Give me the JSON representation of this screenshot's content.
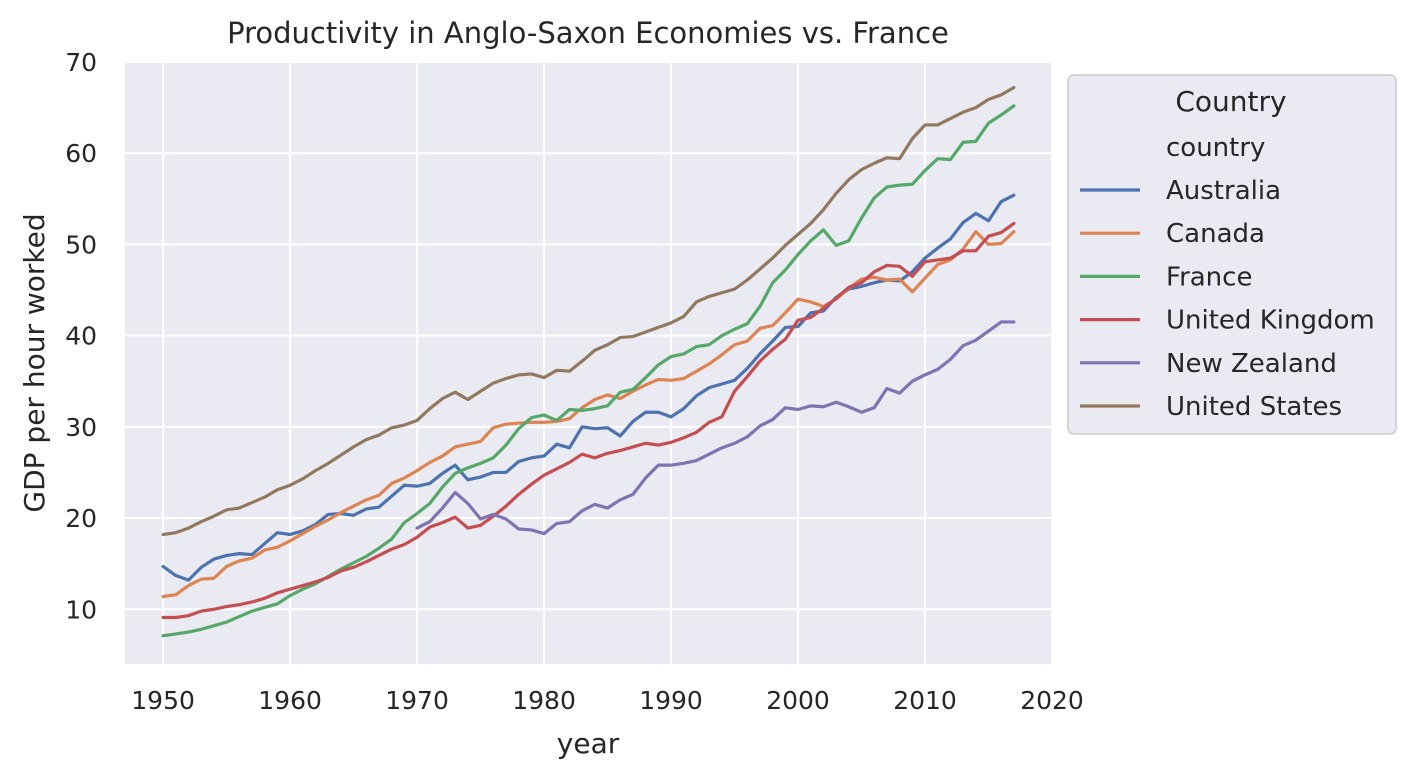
{
  "chart_data": {
    "type": "line",
    "title": "Productivity in Anglo-Saxon Economies vs. France",
    "xlabel": "year",
    "ylabel": "GDP per hour worked",
    "xlim": [
      1947,
      2020
    ],
    "ylim": [
      4,
      70
    ],
    "xticks": [
      1950,
      1960,
      1970,
      1980,
      1990,
      2000,
      2010,
      2020
    ],
    "yticks": [
      10,
      20,
      30,
      40,
      50,
      60,
      70
    ],
    "grid": true,
    "background": "#eaeaf2",
    "legend": {
      "title": "Country",
      "subtitle": "country",
      "placement": "outside-right-top"
    },
    "series": [
      {
        "name": "Australia",
        "color": "#4c72b0",
        "x_start": 1950,
        "values": [
          14.7,
          13.7,
          13.2,
          14.6,
          15.5,
          15.9,
          16.1,
          16.0,
          17.2,
          18.4,
          18.2,
          18.6,
          19.3,
          20.4,
          20.5,
          20.3,
          21.0,
          21.2,
          22.4,
          23.6,
          23.5,
          23.8,
          24.9,
          25.8,
          24.2,
          24.5,
          25.0,
          25.0,
          26.2,
          26.6,
          26.8,
          28.1,
          27.7,
          30.0,
          29.8,
          29.9,
          29.0,
          30.6,
          31.6,
          31.6,
          31.1,
          32.0,
          33.4,
          34.3,
          34.7,
          35.1,
          36.4,
          38.0,
          39.4,
          40.9,
          41.0,
          42.5,
          42.7,
          44.2,
          45.1,
          45.4,
          45.8,
          46.1,
          46.0,
          47.0,
          48.5,
          49.6,
          50.6,
          52.4,
          53.4,
          52.6,
          54.7,
          55.4
        ]
      },
      {
        "name": "Canada",
        "color": "#dd8452",
        "x_start": 1950,
        "values": [
          11.4,
          11.6,
          12.6,
          13.3,
          13.4,
          14.7,
          15.3,
          15.6,
          16.5,
          16.8,
          17.5,
          18.3,
          19.1,
          19.8,
          20.6,
          21.3,
          22.0,
          22.5,
          23.8,
          24.4,
          25.2,
          26.1,
          26.8,
          27.8,
          28.1,
          28.4,
          29.9,
          30.3,
          30.4,
          30.5,
          30.5,
          30.6,
          30.9,
          32.1,
          33.0,
          33.5,
          33.1,
          33.9,
          34.6,
          35.2,
          35.1,
          35.3,
          36.1,
          36.9,
          37.9,
          39.0,
          39.4,
          40.8,
          41.1,
          42.5,
          44.0,
          43.7,
          43.2,
          44.0,
          45.2,
          46.2,
          46.4,
          46.1,
          46.2,
          44.8,
          46.3,
          47.8,
          48.3,
          49.5,
          51.4,
          50.0,
          50.1,
          51.4
        ]
      },
      {
        "name": "France",
        "color": "#55a868",
        "x_start": 1950,
        "values": [
          7.1,
          7.3,
          7.5,
          7.8,
          8.2,
          8.6,
          9.2,
          9.8,
          10.2,
          10.6,
          11.5,
          12.2,
          12.8,
          13.6,
          14.4,
          15.1,
          15.8,
          16.7,
          17.7,
          19.5,
          20.5,
          21.6,
          23.4,
          24.9,
          25.5,
          26.0,
          26.6,
          28.0,
          29.8,
          31.0,
          31.3,
          30.7,
          31.9,
          31.8,
          32.0,
          32.3,
          33.8,
          34.1,
          35.4,
          36.8,
          37.7,
          38.0,
          38.8,
          39.0,
          40.0,
          40.7,
          41.3,
          43.2,
          45.8,
          47.2,
          48.9,
          50.4,
          51.6,
          49.9,
          50.4,
          52.9,
          55.1,
          56.3,
          56.5,
          56.6,
          58.1,
          59.4,
          59.3,
          61.2,
          61.3,
          63.3,
          64.2,
          65.2
        ]
      },
      {
        "name": "United Kingdom",
        "color": "#c44e52",
        "x_start": 1950,
        "values": [
          9.1,
          9.1,
          9.3,
          9.8,
          10.0,
          10.3,
          10.5,
          10.8,
          11.2,
          11.8,
          12.2,
          12.6,
          13.0,
          13.5,
          14.2,
          14.6,
          15.2,
          15.9,
          16.6,
          17.1,
          17.9,
          19.0,
          19.5,
          20.1,
          18.9,
          19.2,
          20.2,
          21.3,
          22.6,
          23.7,
          24.7,
          25.4,
          26.1,
          27.0,
          26.6,
          27.1,
          27.4,
          27.8,
          28.2,
          28.0,
          28.3,
          28.8,
          29.4,
          30.5,
          31.1,
          33.9,
          35.5,
          37.2,
          38.5,
          39.6,
          41.7,
          42.0,
          43.0,
          44.1,
          45.3,
          45.8,
          47.0,
          47.7,
          47.6,
          46.5,
          48.1,
          48.3,
          48.5,
          49.3,
          49.3,
          50.9,
          51.3,
          52.3
        ]
      },
      {
        "name": "New Zealand",
        "color": "#8172b3",
        "x_start": 1970,
        "values": [
          18.9,
          19.6,
          21.1,
          22.8,
          21.6,
          19.9,
          20.4,
          19.9,
          18.8,
          18.7,
          18.3,
          19.4,
          19.6,
          20.8,
          21.5,
          21.1,
          22.0,
          22.6,
          24.4,
          25.8,
          25.8,
          26.0,
          26.3,
          27.0,
          27.7,
          28.2,
          28.9,
          30.1,
          30.8,
          32.1,
          31.9,
          32.3,
          32.2,
          32.7,
          32.2,
          31.6,
          32.1,
          34.2,
          33.7,
          35.0,
          35.7,
          36.3,
          37.4,
          38.9,
          39.5,
          40.5,
          41.5,
          41.5
        ]
      },
      {
        "name": "United States",
        "color": "#937860",
        "x_start": 1950,
        "values": [
          18.2,
          18.4,
          18.9,
          19.6,
          20.2,
          20.9,
          21.1,
          21.7,
          22.3,
          23.1,
          23.6,
          24.3,
          25.2,
          26.0,
          26.9,
          27.8,
          28.6,
          29.1,
          29.9,
          30.2,
          30.7,
          32.0,
          33.1,
          33.8,
          33.0,
          33.9,
          34.8,
          35.3,
          35.7,
          35.8,
          35.4,
          36.2,
          36.1,
          37.2,
          38.4,
          39.0,
          39.8,
          39.9,
          40.4,
          40.9,
          41.4,
          42.1,
          43.7,
          44.3,
          44.7,
          45.1,
          46.1,
          47.3,
          48.5,
          49.9,
          51.1,
          52.3,
          53.8,
          55.6,
          57.1,
          58.2,
          58.9,
          59.5,
          59.4,
          61.6,
          63.1,
          63.1,
          63.8,
          64.5,
          65.0,
          65.9,
          66.4,
          67.2
        ]
      }
    ]
  }
}
